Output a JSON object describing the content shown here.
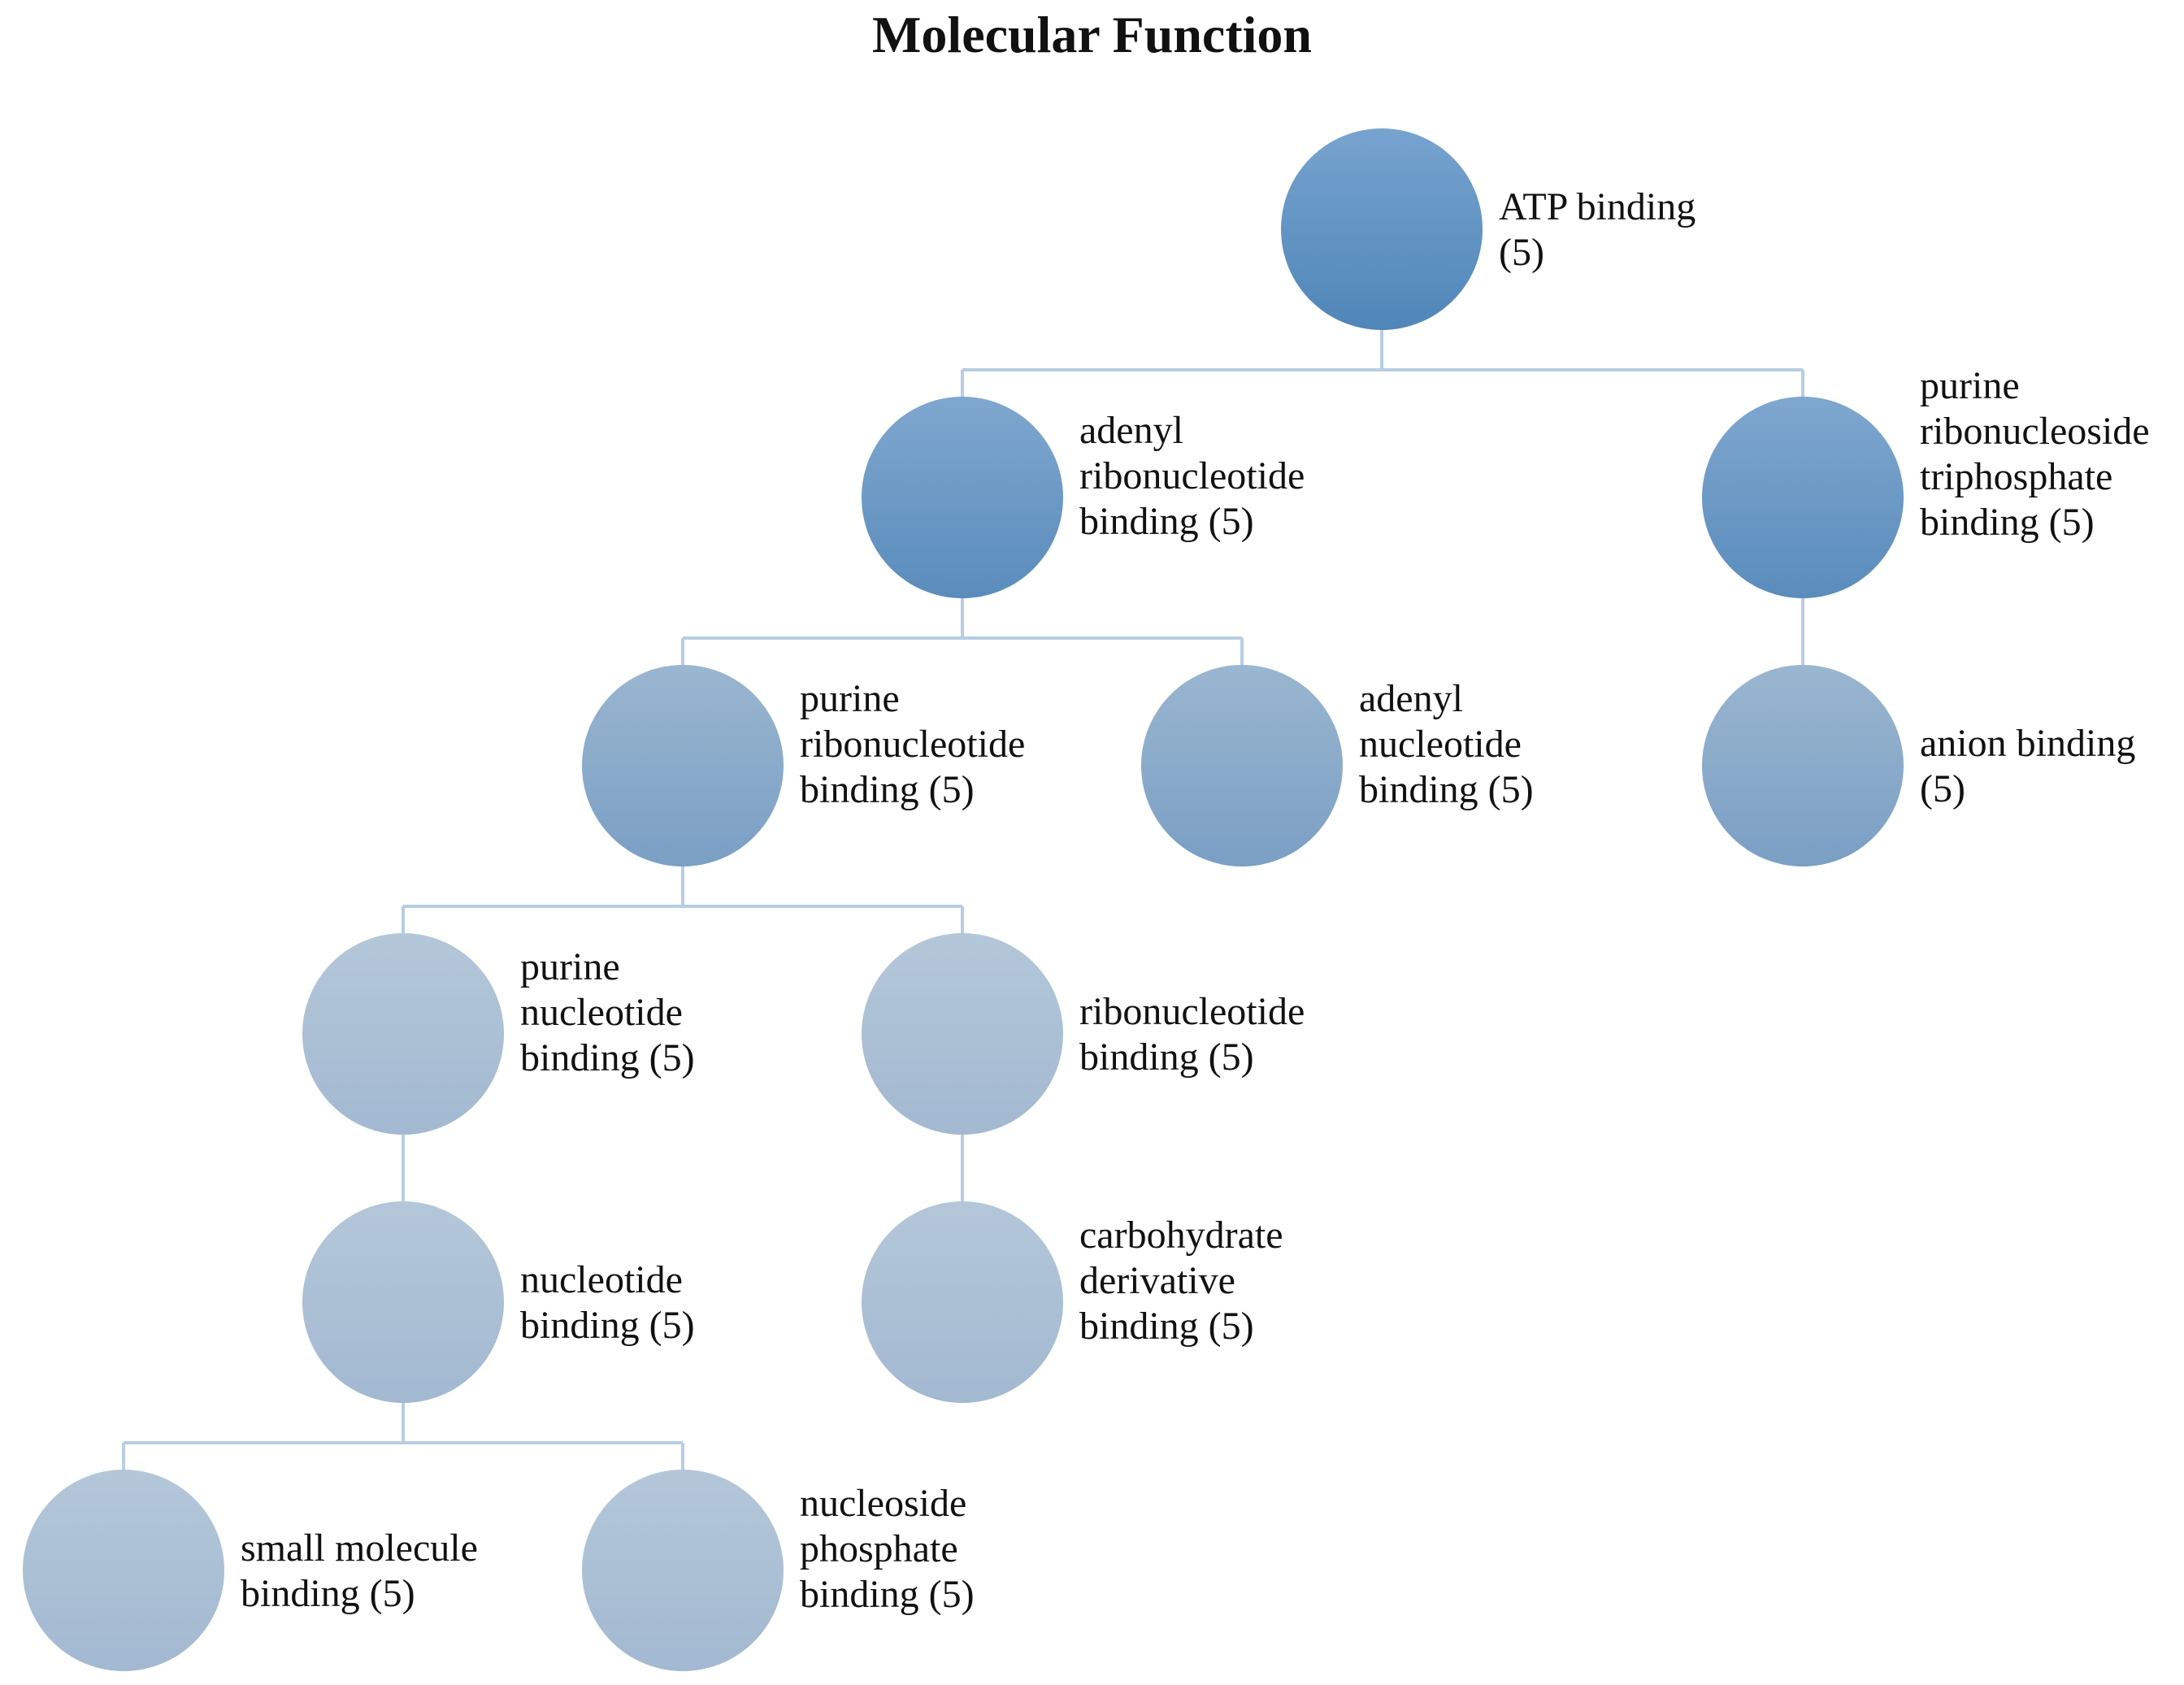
{
  "title": "Molecular Function",
  "colors": {
    "connector": "#b7cde4",
    "level1_top": "#77a3cf",
    "level1_bottom": "#4f86b8",
    "level2_top": "#7fa7cf",
    "level2_bottom": "#5a8cbc",
    "level3_top": "#9ab6d0",
    "level3_bottom": "#7a9fc4",
    "level4_top": "#b4c7d9",
    "level4_bottom": "#a3b9d1"
  },
  "nodes": [
    {
      "id": "n1",
      "level": 1,
      "parent": null,
      "lines": [
        "ATP binding",
        "(5)"
      ]
    },
    {
      "id": "n2",
      "level": 2,
      "parent": "n1",
      "lines": [
        "adenyl",
        "ribonucleotide",
        "binding (5)"
      ]
    },
    {
      "id": "n3",
      "level": 2,
      "parent": "n1",
      "lines": [
        "purine",
        "ribonucleoside",
        "triphosphate",
        "binding (5)"
      ]
    },
    {
      "id": "n4",
      "level": 3,
      "parent": "n2",
      "lines": [
        "purine",
        "ribonucleotide",
        "binding (5)"
      ]
    },
    {
      "id": "n5",
      "level": 3,
      "parent": "n2",
      "lines": [
        "adenyl",
        "nucleotide",
        "binding (5)"
      ]
    },
    {
      "id": "n6",
      "level": 3,
      "parent": "n3",
      "lines": [
        "anion binding",
        "(5)"
      ]
    },
    {
      "id": "n7",
      "level": 4,
      "parent": "n4",
      "lines": [
        "purine",
        "nucleotide",
        "binding (5)"
      ]
    },
    {
      "id": "n8",
      "level": 4,
      "parent": "n4",
      "lines": [
        "ribonucleotide",
        "binding (5)"
      ]
    },
    {
      "id": "n9",
      "level": 4,
      "parent": "n7",
      "lines": [
        "nucleotide",
        "binding (5)"
      ]
    },
    {
      "id": "n10",
      "level": 4,
      "parent": "n8",
      "lines": [
        "carbohydrate",
        "derivative",
        "binding (5)"
      ]
    },
    {
      "id": "n11",
      "level": 4,
      "parent": "n9",
      "lines": [
        "small molecule",
        "binding (5)"
      ]
    },
    {
      "id": "n12",
      "level": 4,
      "parent": "n9",
      "lines": [
        "nucleoside",
        "phosphate",
        "binding (5)"
      ]
    }
  ]
}
